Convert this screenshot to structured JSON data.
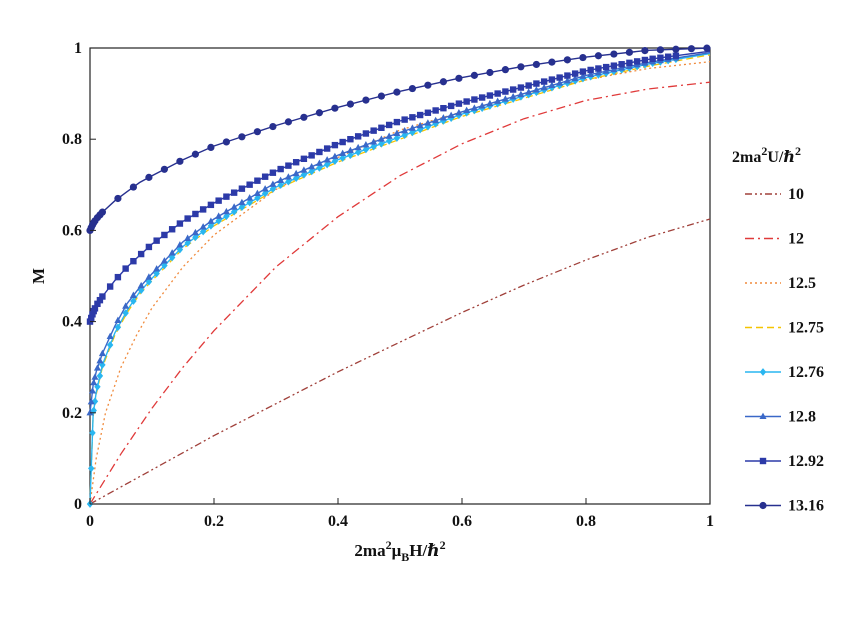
{
  "chart_data": {
    "type": "line",
    "xlabel": "2ma²μ_BH/ℏ²",
    "xlabel_parts": {
      "a": "2ma",
      "b": "2",
      "c": "μ",
      "d": "B",
      "e": "H/ℏ",
      "f": "2"
    },
    "ylabel": "M",
    "xlim": [
      0,
      1
    ],
    "ylim": [
      0,
      1
    ],
    "xticks": [
      "0",
      "0.2",
      "0.4",
      "0.6",
      "0.8",
      "1"
    ],
    "yticks": [
      "0",
      "0.2",
      "0.4",
      "0.6",
      "0.8",
      "1"
    ],
    "grid": false,
    "legend": {
      "title": "2ma²U/ℏ²",
      "title_parts": {
        "a": "2ma",
        "b": "2",
        "c": "U/ℏ",
        "d": "2"
      },
      "placement": "right-outside"
    },
    "series": [
      {
        "name": "10",
        "color": "#a0403a",
        "style": "dash-dot-dot",
        "marker": "none",
        "x": [
          0,
          0.1,
          0.2,
          0.3,
          0.4,
          0.5,
          0.6,
          0.7,
          0.8,
          0.9,
          1.0
        ],
        "y": [
          0,
          0.075,
          0.15,
          0.22,
          0.29,
          0.355,
          0.42,
          0.48,
          0.535,
          0.585,
          0.625
        ]
      },
      {
        "name": "12",
        "color": "#e03a3a",
        "style": "dash-dot",
        "marker": "none",
        "x": [
          0,
          0.05,
          0.1,
          0.15,
          0.2,
          0.3,
          0.4,
          0.5,
          0.6,
          0.7,
          0.8,
          0.9,
          1.0
        ],
        "y": [
          0,
          0.11,
          0.21,
          0.3,
          0.38,
          0.52,
          0.63,
          0.72,
          0.79,
          0.845,
          0.885,
          0.91,
          0.925
        ]
      },
      {
        "name": "12.5",
        "color": "#f08a3c",
        "style": "dot",
        "marker": "none",
        "x": [
          0,
          0.01,
          0.025,
          0.05,
          0.075,
          0.1,
          0.15,
          0.2,
          0.3,
          0.4,
          0.5,
          0.6,
          0.7,
          0.8,
          0.9,
          1.0
        ],
        "y": [
          0,
          0.1,
          0.2,
          0.3,
          0.37,
          0.43,
          0.52,
          0.59,
          0.69,
          0.76,
          0.82,
          0.86,
          0.9,
          0.93,
          0.955,
          0.97
        ]
      },
      {
        "name": "12.75",
        "color": "#f5c400",
        "style": "dash",
        "marker": "none",
        "x": [
          0,
          0.005,
          0.01,
          0.02,
          0.04,
          0.06,
          0.08,
          0.1,
          0.15,
          0.2,
          0.3,
          0.4,
          0.5,
          0.6,
          0.7,
          0.8,
          0.9,
          1.0
        ],
        "y": [
          0,
          0.19,
          0.24,
          0.3,
          0.37,
          0.42,
          0.46,
          0.49,
          0.56,
          0.61,
          0.69,
          0.75,
          0.8,
          0.85,
          0.89,
          0.93,
          0.96,
          0.985
        ]
      },
      {
        "name": "12.76",
        "color": "#29b6f0",
        "style": "solid",
        "marker": "diamond",
        "x": [
          0,
          0.005,
          0.01,
          0.02,
          0.04,
          0.06,
          0.08,
          0.1,
          0.15,
          0.2,
          0.3,
          0.4,
          0.5,
          0.6,
          0.7,
          0.8,
          0.9,
          1.0
        ],
        "y": [
          0,
          0.195,
          0.245,
          0.305,
          0.375,
          0.425,
          0.465,
          0.495,
          0.565,
          0.615,
          0.695,
          0.755,
          0.805,
          0.855,
          0.895,
          0.935,
          0.965,
          0.988
        ]
      },
      {
        "name": "12.8",
        "color": "#3a68c8",
        "style": "solid",
        "marker": "triangle",
        "x": [
          0,
          0.005,
          0.01,
          0.02,
          0.04,
          0.06,
          0.08,
          0.1,
          0.15,
          0.2,
          0.3,
          0.4,
          0.5,
          0.6,
          0.7,
          0.8,
          0.9,
          1.0
        ],
        "y": [
          0.2,
          0.26,
          0.29,
          0.33,
          0.39,
          0.44,
          0.475,
          0.505,
          0.575,
          0.625,
          0.705,
          0.765,
          0.815,
          0.86,
          0.9,
          0.94,
          0.968,
          0.99
        ]
      },
      {
        "name": "12.92",
        "color": "#2c3aa8",
        "style": "solid",
        "marker": "square",
        "x": [
          0,
          0.005,
          0.01,
          0.02,
          0.04,
          0.06,
          0.08,
          0.1,
          0.15,
          0.2,
          0.3,
          0.4,
          0.5,
          0.6,
          0.7,
          0.8,
          0.9,
          1.0
        ],
        "y": [
          0.4,
          0.42,
          0.435,
          0.455,
          0.49,
          0.52,
          0.545,
          0.57,
          0.62,
          0.66,
          0.73,
          0.79,
          0.84,
          0.88,
          0.915,
          0.95,
          0.975,
          0.993
        ]
      },
      {
        "name": "13.16",
        "color": "#27308f",
        "style": "solid",
        "marker": "circle",
        "x": [
          0,
          0.005,
          0.01,
          0.02,
          0.04,
          0.06,
          0.08,
          0.1,
          0.15,
          0.2,
          0.3,
          0.4,
          0.5,
          0.6,
          0.7,
          0.8,
          0.9,
          1.0
        ],
        "y": [
          0.6,
          0.615,
          0.625,
          0.64,
          0.665,
          0.685,
          0.705,
          0.72,
          0.755,
          0.785,
          0.83,
          0.87,
          0.905,
          0.935,
          0.96,
          0.98,
          0.995,
          1.0
        ]
      }
    ]
  }
}
